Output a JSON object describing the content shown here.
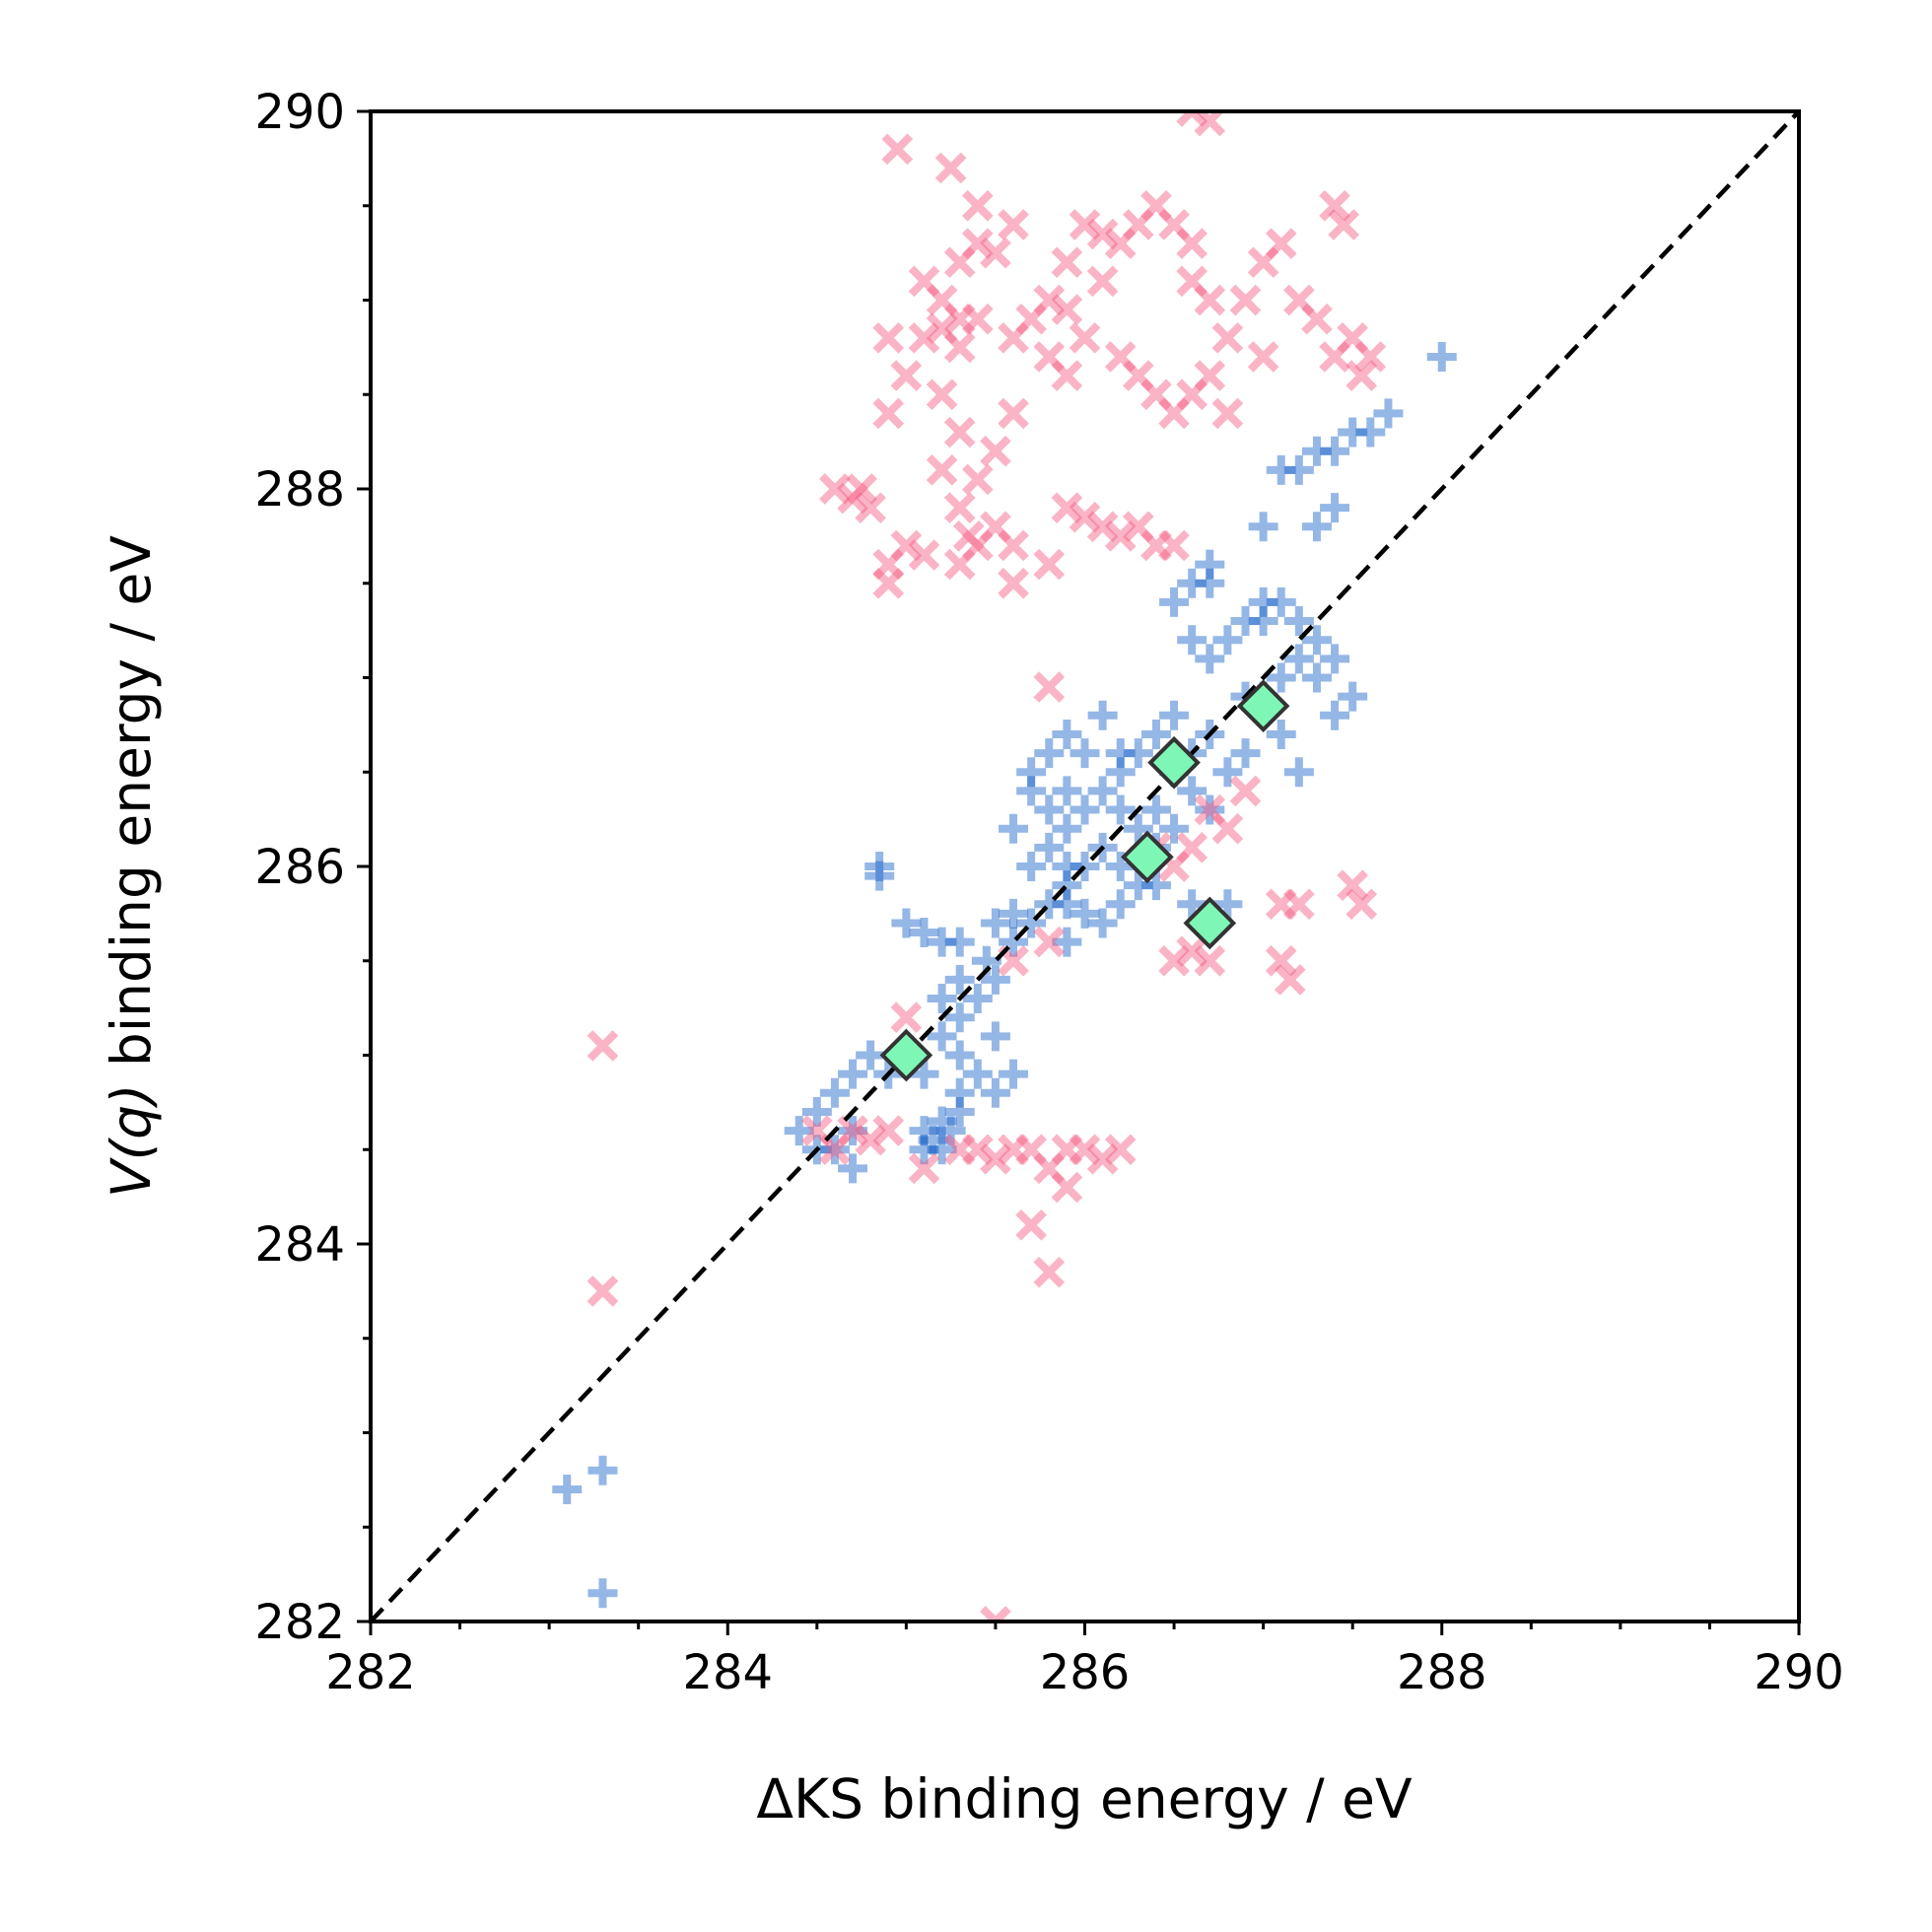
{
  "chart_data": {
    "type": "scatter",
    "xlabel": "ΔKS binding energy / eV",
    "ylabel_italic": "V(q)",
    "ylabel_rest": " binding energy / eV",
    "xlim": [
      282,
      290
    ],
    "ylim": [
      282,
      290
    ],
    "x_ticks": [
      "282",
      "284",
      "286",
      "288",
      "290"
    ],
    "y_ticks": [
      "282",
      "284",
      "286",
      "288",
      "290"
    ],
    "x_tick_values": [
      282,
      284,
      286,
      288,
      290
    ],
    "y_tick_values": [
      282,
      284,
      286,
      288,
      290
    ],
    "minor_step": 0.5,
    "grid": false,
    "reference_line": {
      "x": [
        282,
        290
      ],
      "y": [
        282,
        290
      ],
      "style": "dashed",
      "color": "#000000"
    },
    "colors": {
      "plus": "#1560c8",
      "cross": "#f5587e",
      "diamond_fill": "#7ef7b6",
      "diamond_edge": "#333333"
    },
    "series": [
      {
        "marker": "plus",
        "points": [
          [
            285.0,
            285.0
          ],
          [
            285.2,
            285.1
          ],
          [
            285.1,
            284.9
          ],
          [
            284.9,
            284.9
          ],
          [
            284.8,
            285.0
          ],
          [
            284.7,
            284.9
          ],
          [
            284.6,
            284.8
          ],
          [
            284.5,
            284.7
          ],
          [
            284.4,
            284.6
          ],
          [
            284.5,
            284.5
          ],
          [
            284.6,
            284.5
          ],
          [
            284.7,
            284.6
          ],
          [
            285.1,
            284.6
          ],
          [
            285.2,
            284.5
          ],
          [
            285.15,
            284.55
          ],
          [
            285.25,
            284.6
          ],
          [
            285.3,
            284.7
          ],
          [
            285.1,
            284.5
          ],
          [
            285.2,
            284.65
          ],
          [
            285.3,
            284.8
          ],
          [
            285.4,
            284.9
          ],
          [
            285.5,
            284.8
          ],
          [
            285.3,
            285.2
          ],
          [
            285.4,
            285.3
          ],
          [
            285.5,
            285.4
          ],
          [
            285.3,
            285.4
          ],
          [
            285.45,
            285.5
          ],
          [
            285.6,
            285.6
          ],
          [
            285.7,
            285.7
          ],
          [
            285.8,
            285.8
          ],
          [
            285.9,
            285.9
          ],
          [
            285.2,
            285.6
          ],
          [
            285.0,
            285.7
          ],
          [
            285.1,
            285.65
          ],
          [
            285.3,
            285.6
          ],
          [
            285.5,
            285.7
          ],
          [
            285.6,
            285.75
          ],
          [
            284.85,
            286.0
          ],
          [
            284.85,
            285.95
          ],
          [
            285.7,
            286.0
          ],
          [
            285.8,
            286.1
          ],
          [
            285.9,
            286.2
          ],
          [
            286.0,
            286.3
          ],
          [
            286.1,
            286.4
          ],
          [
            286.2,
            286.5
          ],
          [
            285.9,
            286.4
          ],
          [
            285.8,
            286.6
          ],
          [
            285.7,
            286.5
          ],
          [
            285.9,
            286.7
          ],
          [
            286.0,
            286.6
          ],
          [
            286.2,
            286.3
          ],
          [
            286.3,
            286.6
          ],
          [
            286.4,
            286.7
          ],
          [
            286.5,
            286.5
          ],
          [
            286.6,
            286.6
          ],
          [
            286.7,
            286.7
          ],
          [
            286.0,
            286.0
          ],
          [
            286.1,
            286.1
          ],
          [
            286.2,
            286.0
          ],
          [
            286.3,
            286.2
          ],
          [
            286.4,
            286.3
          ],
          [
            286.5,
            286.2
          ],
          [
            286.6,
            286.4
          ],
          [
            286.7,
            286.3
          ],
          [
            286.8,
            286.5
          ],
          [
            286.9,
            286.6
          ],
          [
            286.2,
            285.8
          ],
          [
            286.1,
            285.7
          ],
          [
            286.3,
            285.9
          ],
          [
            285.9,
            285.8
          ],
          [
            286.0,
            285.75
          ],
          [
            286.6,
            285.8
          ],
          [
            286.7,
            285.7
          ],
          [
            286.8,
            285.8
          ],
          [
            286.9,
            286.9
          ],
          [
            287.0,
            286.9
          ],
          [
            287.1,
            287.0
          ],
          [
            287.2,
            287.1
          ],
          [
            287.3,
            287.2
          ],
          [
            287.0,
            287.3
          ],
          [
            286.9,
            287.3
          ],
          [
            286.8,
            287.2
          ],
          [
            286.7,
            287.1
          ],
          [
            286.6,
            287.2
          ],
          [
            286.5,
            287.4
          ],
          [
            286.6,
            287.5
          ],
          [
            286.7,
            287.6
          ],
          [
            286.7,
            287.5
          ],
          [
            287.0,
            287.4
          ],
          [
            287.1,
            287.4
          ],
          [
            287.2,
            287.3
          ],
          [
            287.3,
            287.0
          ],
          [
            287.4,
            287.1
          ],
          [
            287.5,
            286.9
          ],
          [
            287.4,
            286.8
          ],
          [
            287.1,
            286.7
          ],
          [
            287.2,
            286.5
          ],
          [
            287.0,
            287.8
          ],
          [
            287.3,
            287.8
          ],
          [
            287.4,
            287.9
          ],
          [
            287.1,
            288.1
          ],
          [
            287.2,
            288.1
          ],
          [
            287.3,
            288.2
          ],
          [
            287.4,
            288.2
          ],
          [
            287.5,
            288.3
          ],
          [
            287.6,
            288.3
          ],
          [
            287.7,
            288.4
          ],
          [
            288.0,
            288.7
          ],
          [
            283.3,
            282.8
          ],
          [
            283.1,
            282.7
          ],
          [
            283.3,
            282.15
          ],
          [
            285.7,
            286.4
          ],
          [
            285.8,
            286.3
          ],
          [
            285.6,
            286.2
          ],
          [
            286.1,
            286.8
          ],
          [
            286.5,
            286.8
          ],
          [
            286.4,
            285.9
          ],
          [
            285.2,
            285.3
          ],
          [
            285.3,
            285.0
          ],
          [
            285.5,
            285.1
          ],
          [
            285.6,
            284.9
          ],
          [
            284.7,
            284.4
          ],
          [
            285.9,
            285.6
          ],
          [
            286.4,
            286.1
          ],
          [
            286.2,
            286.6
          ],
          [
            285.9,
            286.0
          ]
        ]
      },
      {
        "marker": "cross",
        "points": [
          [
            284.95,
            289.8
          ],
          [
            285.25,
            289.7
          ],
          [
            285.4,
            289.5
          ],
          [
            285.6,
            289.4
          ],
          [
            285.1,
            289.1
          ],
          [
            285.2,
            289.0
          ],
          [
            285.3,
            288.9
          ],
          [
            285.1,
            288.8
          ],
          [
            285.2,
            288.85
          ],
          [
            285.3,
            288.75
          ],
          [
            285.4,
            288.9
          ],
          [
            285.3,
            289.2
          ],
          [
            285.4,
            289.3
          ],
          [
            285.5,
            289.25
          ],
          [
            285.6,
            288.8
          ],
          [
            285.7,
            288.9
          ],
          [
            285.8,
            289.0
          ],
          [
            285.9,
            288.95
          ],
          [
            286.0,
            288.8
          ],
          [
            286.1,
            289.1
          ],
          [
            286.2,
            289.3
          ],
          [
            286.3,
            289.4
          ],
          [
            286.4,
            289.5
          ],
          [
            286.5,
            289.4
          ],
          [
            286.6,
            289.3
          ],
          [
            286.0,
            289.4
          ],
          [
            286.1,
            289.35
          ],
          [
            285.9,
            289.2
          ],
          [
            286.2,
            288.7
          ],
          [
            286.3,
            288.6
          ],
          [
            286.4,
            288.5
          ],
          [
            286.5,
            288.4
          ],
          [
            286.6,
            288.5
          ],
          [
            286.7,
            288.6
          ],
          [
            286.8,
            288.8
          ],
          [
            286.9,
            289.0
          ],
          [
            287.0,
            289.2
          ],
          [
            287.1,
            289.3
          ],
          [
            287.2,
            289.0
          ],
          [
            287.3,
            288.9
          ],
          [
            287.4,
            288.7
          ],
          [
            287.5,
            288.8
          ],
          [
            287.6,
            288.7
          ],
          [
            287.55,
            288.6
          ],
          [
            287.0,
            288.7
          ],
          [
            286.8,
            288.4
          ],
          [
            286.6,
            289.1
          ],
          [
            286.7,
            289.0
          ],
          [
            287.4,
            289.5
          ],
          [
            287.45,
            289.4
          ],
          [
            286.6,
            290.0
          ],
          [
            286.7,
            289.95
          ],
          [
            284.9,
            288.8
          ],
          [
            285.0,
            288.6
          ],
          [
            285.2,
            288.5
          ],
          [
            285.3,
            288.3
          ],
          [
            285.5,
            288.2
          ],
          [
            285.6,
            288.4
          ],
          [
            285.2,
            288.1
          ],
          [
            285.3,
            287.9
          ],
          [
            285.4,
            288.05
          ],
          [
            284.9,
            288.4
          ],
          [
            284.6,
            288.0
          ],
          [
            284.7,
            287.95
          ],
          [
            284.8,
            287.9
          ],
          [
            284.75,
            288.0
          ],
          [
            284.9,
            287.6
          ],
          [
            285.0,
            287.7
          ],
          [
            285.1,
            287.65
          ],
          [
            285.3,
            287.6
          ],
          [
            285.4,
            287.7
          ],
          [
            285.5,
            287.8
          ],
          [
            285.35,
            287.75
          ],
          [
            285.6,
            287.7
          ],
          [
            285.6,
            287.5
          ],
          [
            285.8,
            287.6
          ],
          [
            284.9,
            287.5
          ],
          [
            285.9,
            287.9
          ],
          [
            286.0,
            287.85
          ],
          [
            286.1,
            287.8
          ],
          [
            286.2,
            287.75
          ],
          [
            286.3,
            287.8
          ],
          [
            286.5,
            287.7
          ],
          [
            286.4,
            287.7
          ],
          [
            285.8,
            288.7
          ],
          [
            285.9,
            288.6
          ],
          [
            285.8,
            286.95
          ],
          [
            286.4,
            286.1
          ],
          [
            286.5,
            286.0
          ],
          [
            286.6,
            286.1
          ],
          [
            286.7,
            286.3
          ],
          [
            286.8,
            286.2
          ],
          [
            286.9,
            286.4
          ],
          [
            287.1,
            285.8
          ],
          [
            287.2,
            285.8
          ],
          [
            287.5,
            285.9
          ],
          [
            287.55,
            285.8
          ],
          [
            287.1,
            285.5
          ],
          [
            287.15,
            285.4
          ],
          [
            286.5,
            285.5
          ],
          [
            286.6,
            285.55
          ],
          [
            286.7,
            285.5
          ],
          [
            285.8,
            285.6
          ],
          [
            285.6,
            285.5
          ],
          [
            285.0,
            285.2
          ],
          [
            284.5,
            284.6
          ],
          [
            284.6,
            284.5
          ],
          [
            284.7,
            284.6
          ],
          [
            284.8,
            284.55
          ],
          [
            284.9,
            284.6
          ],
          [
            285.1,
            284.4
          ],
          [
            285.3,
            284.5
          ],
          [
            285.4,
            284.5
          ],
          [
            285.5,
            284.45
          ],
          [
            285.6,
            284.5
          ],
          [
            285.7,
            284.5
          ],
          [
            285.8,
            284.4
          ],
          [
            285.9,
            284.5
          ],
          [
            286.0,
            284.5
          ],
          [
            286.1,
            284.45
          ],
          [
            286.2,
            284.5
          ],
          [
            285.9,
            284.3
          ],
          [
            285.7,
            284.1
          ],
          [
            285.8,
            283.85
          ],
          [
            283.3,
            285.05
          ],
          [
            283.3,
            283.75
          ],
          [
            285.5,
            282.0
          ]
        ]
      },
      {
        "marker": "diamond",
        "points": [
          [
            285.0,
            285.0
          ],
          [
            286.35,
            286.05
          ],
          [
            286.5,
            286.55
          ],
          [
            286.7,
            285.7
          ],
          [
            287.0,
            286.85
          ]
        ]
      }
    ]
  }
}
